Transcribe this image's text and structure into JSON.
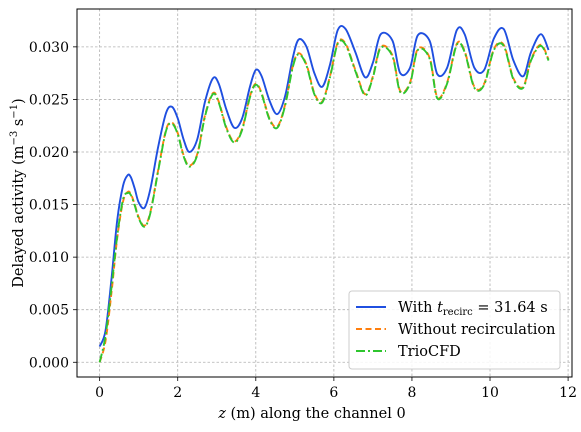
{
  "chart_data": {
    "type": "line",
    "xlabel": "z (m) along the channel 0",
    "ylabel": "Delayed activity (m⁻³ s⁻¹)",
    "xlim": [
      -0.58,
      12.1
    ],
    "ylim": [
      -0.0014,
      0.0336
    ],
    "xticks": [
      0,
      2,
      4,
      6,
      8,
      10,
      12
    ],
    "yticks": [
      0.0,
      0.005,
      0.01,
      0.015,
      0.02,
      0.025,
      0.03
    ],
    "ytick_labels": [
      "0.000",
      "0.005",
      "0.010",
      "0.015",
      "0.020",
      "0.025",
      "0.030"
    ],
    "grid": true,
    "legend_position": "lower-right",
    "series": [
      {
        "name": "With t_recirc = 31.64 s",
        "legend_label": "With t",
        "legend_sub": "recirc",
        "legend_suffix": " = 31.64 s",
        "color": "#1f4fe0",
        "dash": "solid",
        "x": [
          0.0,
          0.15,
          0.3,
          0.45,
          0.6,
          0.72,
          0.8,
          0.9,
          1.0,
          1.15,
          1.3,
          1.5,
          1.7,
          1.85,
          2.0,
          2.15,
          2.3,
          2.5,
          2.7,
          2.9,
          3.05,
          3.25,
          3.45,
          3.65,
          3.85,
          4.0,
          4.15,
          4.35,
          4.55,
          4.75,
          4.95,
          5.1,
          5.3,
          5.5,
          5.7,
          5.9,
          6.1,
          6.3,
          6.55,
          6.8,
          7.0,
          7.2,
          7.5,
          7.7,
          7.95,
          8.15,
          8.45,
          8.65,
          8.9,
          9.15,
          9.35,
          9.6,
          9.85,
          10.1,
          10.35,
          10.6,
          10.85,
          11.05,
          11.3,
          11.5
        ],
        "y": [
          0.0015,
          0.003,
          0.0078,
          0.0135,
          0.0168,
          0.0178,
          0.0176,
          0.0165,
          0.0152,
          0.0147,
          0.0165,
          0.0205,
          0.0237,
          0.0243,
          0.0232,
          0.0212,
          0.02,
          0.0212,
          0.0248,
          0.027,
          0.0265,
          0.024,
          0.0223,
          0.0232,
          0.0262,
          0.0278,
          0.0272,
          0.0249,
          0.0236,
          0.0253,
          0.029,
          0.0307,
          0.03,
          0.0275,
          0.0262,
          0.0283,
          0.0316,
          0.0317,
          0.0295,
          0.0271,
          0.0285,
          0.0312,
          0.0306,
          0.0275,
          0.028,
          0.0311,
          0.0306,
          0.0274,
          0.028,
          0.0316,
          0.0312,
          0.028,
          0.0278,
          0.0308,
          0.0317,
          0.0287,
          0.0272,
          0.0295,
          0.0312,
          0.0297
        ]
      },
      {
        "name": "Without recirculation",
        "legend_label": "Without recirculation",
        "color": "#ff7f0e",
        "dash": "6,3.5",
        "x": [
          0.0,
          0.15,
          0.3,
          0.45,
          0.6,
          0.72,
          0.8,
          0.9,
          1.0,
          1.15,
          1.3,
          1.5,
          1.7,
          1.85,
          2.0,
          2.15,
          2.3,
          2.5,
          2.7,
          2.9,
          3.05,
          3.25,
          3.45,
          3.65,
          3.85,
          4.0,
          4.15,
          4.35,
          4.55,
          4.75,
          4.95,
          5.1,
          5.3,
          5.5,
          5.7,
          5.9,
          6.1,
          6.3,
          6.55,
          6.8,
          7.0,
          7.2,
          7.5,
          7.7,
          7.95,
          8.15,
          8.45,
          8.65,
          8.9,
          9.15,
          9.35,
          9.6,
          9.85,
          10.1,
          10.35,
          10.6,
          10.85,
          11.05,
          11.3,
          11.5
        ],
        "y": [
          0.0,
          0.002,
          0.0065,
          0.0118,
          0.0153,
          0.0162,
          0.016,
          0.015,
          0.0138,
          0.013,
          0.0143,
          0.0183,
          0.0221,
          0.0228,
          0.0218,
          0.0197,
          0.0187,
          0.0198,
          0.0235,
          0.0256,
          0.0248,
          0.0223,
          0.021,
          0.0222,
          0.0253,
          0.0265,
          0.0256,
          0.0232,
          0.0224,
          0.0245,
          0.0282,
          0.0294,
          0.0283,
          0.0256,
          0.0248,
          0.0272,
          0.0304,
          0.0303,
          0.0278,
          0.0255,
          0.0272,
          0.03,
          0.0292,
          0.0258,
          0.0266,
          0.0298,
          0.029,
          0.0252,
          0.0266,
          0.0303,
          0.0296,
          0.0262,
          0.0265,
          0.0298,
          0.0302,
          0.027,
          0.0262,
          0.0288,
          0.0302,
          0.0288
        ]
      },
      {
        "name": "TrioCFD",
        "legend_label": "TrioCFD",
        "color": "#2ec52e",
        "dash": "9,3,2,3",
        "x": [
          0.0,
          0.15,
          0.3,
          0.45,
          0.6,
          0.72,
          0.8,
          0.9,
          1.0,
          1.15,
          1.3,
          1.5,
          1.7,
          1.85,
          2.0,
          2.15,
          2.3,
          2.5,
          2.7,
          2.9,
          3.05,
          3.25,
          3.45,
          3.65,
          3.85,
          4.0,
          4.15,
          4.35,
          4.55,
          4.75,
          4.95,
          5.1,
          5.3,
          5.5,
          5.7,
          5.9,
          6.1,
          6.3,
          6.55,
          6.8,
          7.0,
          7.2,
          7.5,
          7.7,
          7.95,
          8.15,
          8.45,
          8.65,
          8.9,
          9.15,
          9.35,
          9.6,
          9.85,
          10.1,
          10.35,
          10.6,
          10.85,
          11.05,
          11.3,
          11.5
        ],
        "y": [
          0.0,
          0.0025,
          0.007,
          0.012,
          0.0155,
          0.0161,
          0.0159,
          0.0149,
          0.0137,
          0.0129,
          0.0142,
          0.0182,
          0.022,
          0.0227,
          0.0217,
          0.0196,
          0.0186,
          0.0197,
          0.0234,
          0.0255,
          0.0247,
          0.0222,
          0.0209,
          0.0221,
          0.0252,
          0.0264,
          0.0255,
          0.0231,
          0.0223,
          0.0244,
          0.0281,
          0.0293,
          0.0282,
          0.0255,
          0.0247,
          0.0271,
          0.0303,
          0.0302,
          0.0277,
          0.0254,
          0.0271,
          0.0299,
          0.0291,
          0.0257,
          0.0265,
          0.0297,
          0.0289,
          0.0251,
          0.0265,
          0.0302,
          0.0295,
          0.0261,
          0.0264,
          0.0297,
          0.0301,
          0.0269,
          0.0261,
          0.0287,
          0.0301,
          0.0287
        ]
      }
    ]
  }
}
